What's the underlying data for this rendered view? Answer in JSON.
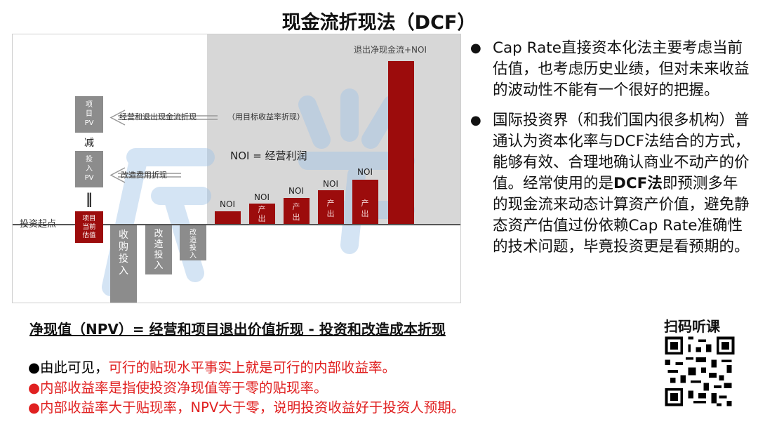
{
  "title": "现金流折现法（DCF）",
  "diagram": {
    "exit_label": "退出净现金流+NOI",
    "project_pv": [
      "项",
      "目",
      "PV"
    ],
    "minus": "减",
    "invest_pv": [
      "投",
      "入",
      "PV"
    ],
    "equals": "‖",
    "start_box": [
      "项目",
      "当前",
      "估值"
    ],
    "start_label": "投资起点",
    "op_exit_discount": "经营和退出现金流折现",
    "target_irr_note": "（用目标收益率折现）",
    "noi_formula": "NOI = 经营利润",
    "renovation_discount": "改造费用折现",
    "noi": "NOI",
    "output": [
      "产",
      "出"
    ],
    "purchase": [
      "收",
      "购",
      "投",
      "入"
    ],
    "renovate": [
      "改",
      "造",
      "投",
      "入"
    ],
    "renovate_small": [
      "改",
      "造",
      "投",
      "入"
    ],
    "colors": {
      "dark_red": "#9c0c0c",
      "gray": "#8c8c8c",
      "panel": "#d7d7d7"
    }
  },
  "right_bullets": [
    {
      "pre": "Cap Rate直接资本化法主要考虑当前估值，也考虑历史业绩，但对未来收益的波动性不能有一个很好的把握。",
      "bold": "",
      "post": ""
    },
    {
      "pre": "国际投资界（和我们国内很多机构）普通认为资本化率与DCF法结合的方式，能够有效、合理地确认商业不动产的价值。经常使用的是",
      "bold": "DCF法",
      "post": "即预测多年的现金流来动态计算资产价值，避免静态资产估值过份依赖Cap Rate准确性的技术问题，毕竟投资更是看预期的。"
    }
  ],
  "npv_formula": "净现值（NPV）= 经营和项目退出价值折现 - 投资和改造成本折现",
  "bottom": {
    "line1_black": "●由此可见，",
    "line1_red": "可行的贴现水平事实上就是可行的内部收益率。",
    "line2": "●内部收益率是指使投资净现值等于零的贴现率。",
    "line3": "●内部收益率大于贴现率，NPV大于零，说明投资收益好于投资人预期。"
  },
  "qr_title": "扫码听课"
}
